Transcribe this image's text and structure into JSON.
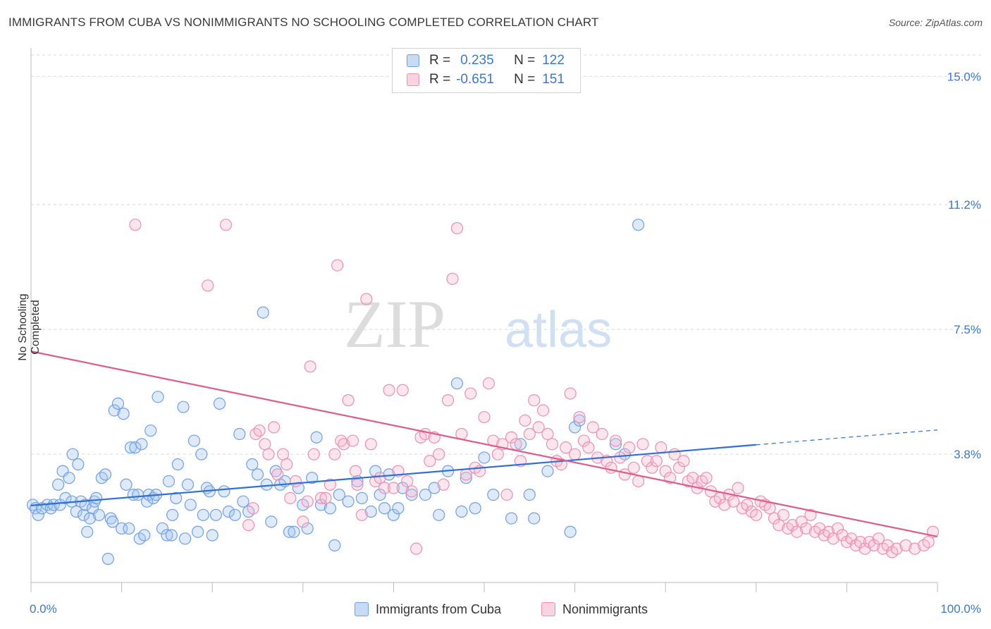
{
  "title": "IMMIGRANTS FROM CUBA VS NONIMMIGRANTS NO SCHOOLING COMPLETED CORRELATION CHART",
  "source": "Source: ZipAtlas.com",
  "watermark": {
    "zip": "ZIP",
    "atlas": "atlas"
  },
  "legend_top": {
    "rows": [
      {
        "r_label": "R =",
        "r_value": "0.235",
        "n_label": "N =",
        "n_value": "122"
      },
      {
        "r_label": "R =",
        "r_value": "-0.651",
        "n_label": "N =",
        "n_value": "151"
      }
    ]
  },
  "colors": {
    "blue": "#6fa0e6",
    "blue_fill": "rgba(160,196,240,0.35)",
    "blue_line": "#2f6fd6",
    "pink": "#ee8fb0",
    "pink_fill": "rgba(246,182,204,0.35)",
    "pink_line": "#e05a8c",
    "grid": "#d9d9d9",
    "tick_label": "#3a78d8"
  },
  "chart_data": {
    "type": "scatter",
    "title": "IMMIGRANTS FROM CUBA VS NONIMMIGRANTS NO SCHOOLING COMPLETED CORRELATION CHART",
    "xlabel": "",
    "ylabel": "No Schooling Completed",
    "xlim": [
      0,
      100
    ],
    "ylim": [
      0,
      15.8
    ],
    "x_tick_labels": [
      "0.0%",
      "100.0%"
    ],
    "y_ticks": [
      3.8,
      7.5,
      11.2,
      15.0
    ],
    "y_tick_labels": [
      "3.8%",
      "7.5%",
      "11.2%",
      "15.0%"
    ],
    "grid": "horizontal dashed",
    "legend_position": "bottom",
    "series": [
      {
        "name": "Immigrants from Cuba",
        "r": 0.235,
        "n": 122,
        "trend": {
          "x0": 0,
          "y0": 2.28,
          "x1": 80,
          "y1": 4.08,
          "dash_x1": 100,
          "dash_y1": 4.52
        },
        "points": [
          [
            0.2,
            2.3
          ],
          [
            0.5,
            2.2
          ],
          [
            0.8,
            2.0
          ],
          [
            1.2,
            2.2
          ],
          [
            1.8,
            2.3
          ],
          [
            2.2,
            2.2
          ],
          [
            2.5,
            2.3
          ],
          [
            3.0,
            2.9
          ],
          [
            3.2,
            2.3
          ],
          [
            3.5,
            3.3
          ],
          [
            3.8,
            2.5
          ],
          [
            4.2,
            3.1
          ],
          [
            4.5,
            2.4
          ],
          [
            4.6,
            3.8
          ],
          [
            5.0,
            2.1
          ],
          [
            5.2,
            3.5
          ],
          [
            5.5,
            2.4
          ],
          [
            5.8,
            2.0
          ],
          [
            6.0,
            2.3
          ],
          [
            6.2,
            1.5
          ],
          [
            6.5,
            1.9
          ],
          [
            6.8,
            2.2
          ],
          [
            7.0,
            2.4
          ],
          [
            7.2,
            2.5
          ],
          [
            7.5,
            2.0
          ],
          [
            7.8,
            3.1
          ],
          [
            8.2,
            3.2
          ],
          [
            8.5,
            0.7
          ],
          [
            8.8,
            1.9
          ],
          [
            9.0,
            1.8
          ],
          [
            9.2,
            5.1
          ],
          [
            9.6,
            5.3
          ],
          [
            10.0,
            1.6
          ],
          [
            10.2,
            5.0
          ],
          [
            10.5,
            2.9
          ],
          [
            10.8,
            1.6
          ],
          [
            11.0,
            4.0
          ],
          [
            11.3,
            2.6
          ],
          [
            11.5,
            4.0
          ],
          [
            11.8,
            2.6
          ],
          [
            12.0,
            1.3
          ],
          [
            12.2,
            4.1
          ],
          [
            12.5,
            1.4
          ],
          [
            12.8,
            2.4
          ],
          [
            13.0,
            2.6
          ],
          [
            13.2,
            4.5
          ],
          [
            13.5,
            2.5
          ],
          [
            13.8,
            2.6
          ],
          [
            14.0,
            5.5
          ],
          [
            14.5,
            1.6
          ],
          [
            15.0,
            1.4
          ],
          [
            15.2,
            3.0
          ],
          [
            15.5,
            1.4
          ],
          [
            15.6,
            2.0
          ],
          [
            16.0,
            2.5
          ],
          [
            16.2,
            3.5
          ],
          [
            16.8,
            5.2
          ],
          [
            17.0,
            1.3
          ],
          [
            17.3,
            2.9
          ],
          [
            17.6,
            2.3
          ],
          [
            18.0,
            4.2
          ],
          [
            18.4,
            1.5
          ],
          [
            18.8,
            3.8
          ],
          [
            19.0,
            2.0
          ],
          [
            19.4,
            2.8
          ],
          [
            19.7,
            2.7
          ],
          [
            20.0,
            1.4
          ],
          [
            20.4,
            2.0
          ],
          [
            20.8,
            5.3
          ],
          [
            21.3,
            2.7
          ],
          [
            21.8,
            2.1
          ],
          [
            22.5,
            2.0
          ],
          [
            23.0,
            4.4
          ],
          [
            23.4,
            2.4
          ],
          [
            24.0,
            2.1
          ],
          [
            24.4,
            3.5
          ],
          [
            25.0,
            3.2
          ],
          [
            25.6,
            8.0
          ],
          [
            26.0,
            2.9
          ],
          [
            26.5,
            1.8
          ],
          [
            27.0,
            3.3
          ],
          [
            27.5,
            2.9
          ],
          [
            28.0,
            3.0
          ],
          [
            28.5,
            1.5
          ],
          [
            29.0,
            1.5
          ],
          [
            29.5,
            2.8
          ],
          [
            30.0,
            2.3
          ],
          [
            30.5,
            1.6
          ],
          [
            31.0,
            3.1
          ],
          [
            31.5,
            4.3
          ],
          [
            32.0,
            2.3
          ],
          [
            33.0,
            2.2
          ],
          [
            33.5,
            1.1
          ],
          [
            34.0,
            2.6
          ],
          [
            35.0,
            2.4
          ],
          [
            36.0,
            3.0
          ],
          [
            36.5,
            2.5
          ],
          [
            37.5,
            2.1
          ],
          [
            38.0,
            3.3
          ],
          [
            38.5,
            2.6
          ],
          [
            39.0,
            2.2
          ],
          [
            39.5,
            3.2
          ],
          [
            40.0,
            2.0
          ],
          [
            40.5,
            2.2
          ],
          [
            41.0,
            2.8
          ],
          [
            42.0,
            2.6
          ],
          [
            43.5,
            2.6
          ],
          [
            44.5,
            2.8
          ],
          [
            45.0,
            2.0
          ],
          [
            46.0,
            3.3
          ],
          [
            47.0,
            5.9
          ],
          [
            47.5,
            2.1
          ],
          [
            48.0,
            3.1
          ],
          [
            49.0,
            2.2
          ],
          [
            50.0,
            3.7
          ],
          [
            51.0,
            2.6
          ],
          [
            53.0,
            1.9
          ],
          [
            54.0,
            4.1
          ],
          [
            55.0,
            2.6
          ],
          [
            55.5,
            1.9
          ],
          [
            57.0,
            3.3
          ],
          [
            59.5,
            1.5
          ],
          [
            60.0,
            4.6
          ],
          [
            60.5,
            4.8
          ],
          [
            64.5,
            4.1
          ],
          [
            65.5,
            3.8
          ],
          [
            67.0,
            10.6
          ]
        ]
      },
      {
        "name": "Nonimmigrants",
        "r": -0.651,
        "n": 151,
        "trend": {
          "x0": 0,
          "y0": 6.85,
          "x1": 100,
          "y1": 1.36
        },
        "points": [
          [
            11.5,
            10.6
          ],
          [
            19.5,
            8.8
          ],
          [
            21.5,
            10.6
          ],
          [
            24.0,
            1.7
          ],
          [
            24.5,
            2.2
          ],
          [
            24.8,
            4.4
          ],
          [
            25.2,
            4.5
          ],
          [
            25.8,
            4.1
          ],
          [
            26.2,
            3.8
          ],
          [
            26.8,
            4.6
          ],
          [
            27.2,
            3.2
          ],
          [
            27.8,
            3.8
          ],
          [
            28.2,
            3.5
          ],
          [
            28.6,
            2.5
          ],
          [
            29.2,
            3.0
          ],
          [
            30.0,
            1.8
          ],
          [
            30.5,
            2.4
          ],
          [
            30.8,
            6.4
          ],
          [
            31.2,
            3.8
          ],
          [
            32.0,
            2.5
          ],
          [
            32.5,
            2.5
          ],
          [
            33.0,
            2.9
          ],
          [
            33.5,
            3.8
          ],
          [
            33.8,
            9.4
          ],
          [
            34.2,
            4.2
          ],
          [
            34.5,
            4.1
          ],
          [
            35.0,
            5.4
          ],
          [
            35.5,
            4.2
          ],
          [
            35.8,
            3.3
          ],
          [
            36.0,
            2.9
          ],
          [
            36.5,
            2.0
          ],
          [
            37.0,
            8.4
          ],
          [
            37.5,
            4.1
          ],
          [
            38.0,
            3.0
          ],
          [
            38.5,
            3.1
          ],
          [
            39.0,
            2.8
          ],
          [
            39.5,
            5.7
          ],
          [
            40.0,
            2.8
          ],
          [
            40.5,
            3.3
          ],
          [
            41.0,
            5.7
          ],
          [
            41.5,
            3.0
          ],
          [
            42.0,
            2.7
          ],
          [
            42.5,
            1.0
          ],
          [
            43.0,
            4.3
          ],
          [
            43.5,
            4.4
          ],
          [
            44.0,
            3.6
          ],
          [
            44.5,
            4.3
          ],
          [
            45.0,
            3.8
          ],
          [
            45.5,
            2.9
          ],
          [
            46.0,
            5.4
          ],
          [
            46.5,
            9.0
          ],
          [
            47.0,
            10.5
          ],
          [
            47.5,
            4.4
          ],
          [
            48.0,
            3.2
          ],
          [
            48.5,
            5.6
          ],
          [
            49.0,
            3.4
          ],
          [
            49.5,
            3.3
          ],
          [
            50.0,
            4.9
          ],
          [
            50.5,
            5.9
          ],
          [
            51.0,
            4.2
          ],
          [
            51.5,
            3.8
          ],
          [
            52.0,
            4.1
          ],
          [
            52.5,
            2.6
          ],
          [
            53.0,
            4.3
          ],
          [
            53.5,
            4.1
          ],
          [
            54.0,
            3.6
          ],
          [
            54.5,
            4.8
          ],
          [
            55.0,
            4.4
          ],
          [
            55.5,
            5.4
          ],
          [
            56.0,
            4.6
          ],
          [
            56.5,
            5.1
          ],
          [
            57.0,
            4.4
          ],
          [
            57.5,
            4.1
          ],
          [
            58.0,
            3.6
          ],
          [
            58.5,
            3.5
          ],
          [
            59.0,
            4.0
          ],
          [
            59.5,
            5.6
          ],
          [
            60.0,
            3.8
          ],
          [
            60.5,
            4.9
          ],
          [
            61.0,
            4.2
          ],
          [
            61.5,
            4.0
          ],
          [
            62.0,
            4.6
          ],
          [
            62.5,
            3.7
          ],
          [
            63.0,
            4.4
          ],
          [
            63.5,
            3.6
          ],
          [
            64.0,
            3.4
          ],
          [
            64.5,
            4.2
          ],
          [
            65.0,
            3.7
          ],
          [
            65.5,
            3.2
          ],
          [
            66.0,
            4.0
          ],
          [
            66.5,
            3.4
          ],
          [
            67.0,
            3.0
          ],
          [
            67.5,
            4.1
          ],
          [
            68.0,
            3.6
          ],
          [
            68.5,
            3.4
          ],
          [
            69.0,
            3.6
          ],
          [
            69.5,
            4.0
          ],
          [
            70.0,
            3.3
          ],
          [
            70.5,
            3.1
          ],
          [
            71.0,
            3.8
          ],
          [
            71.5,
            3.4
          ],
          [
            72.0,
            3.6
          ],
          [
            72.5,
            3.0
          ],
          [
            73.0,
            3.1
          ],
          [
            73.5,
            2.8
          ],
          [
            74.0,
            3.0
          ],
          [
            74.5,
            3.1
          ],
          [
            75.0,
            2.7
          ],
          [
            75.5,
            2.4
          ],
          [
            76.0,
            2.5
          ],
          [
            76.5,
            2.3
          ],
          [
            77.0,
            2.6
          ],
          [
            77.5,
            2.4
          ],
          [
            78.0,
            2.8
          ],
          [
            78.5,
            2.2
          ],
          [
            79.0,
            2.3
          ],
          [
            79.5,
            2.1
          ],
          [
            80.0,
            2.0
          ],
          [
            80.5,
            2.4
          ],
          [
            81.0,
            2.3
          ],
          [
            81.5,
            2.2
          ],
          [
            82.0,
            1.9
          ],
          [
            82.5,
            1.7
          ],
          [
            83.0,
            2.0
          ],
          [
            83.5,
            1.6
          ],
          [
            84.0,
            1.7
          ],
          [
            84.5,
            1.5
          ],
          [
            85.0,
            1.8
          ],
          [
            85.5,
            1.6
          ],
          [
            86.0,
            2.0
          ],
          [
            86.5,
            1.5
          ],
          [
            87.0,
            1.6
          ],
          [
            87.5,
            1.4
          ],
          [
            88.0,
            1.5
          ],
          [
            88.5,
            1.3
          ],
          [
            89.0,
            1.6
          ],
          [
            89.5,
            1.4
          ],
          [
            90.0,
            1.2
          ],
          [
            90.5,
            1.3
          ],
          [
            91.0,
            1.1
          ],
          [
            91.5,
            1.2
          ],
          [
            92.0,
            1.0
          ],
          [
            92.5,
            1.2
          ],
          [
            93.0,
            1.1
          ],
          [
            93.5,
            1.3
          ],
          [
            94.0,
            1.0
          ],
          [
            94.5,
            1.1
          ],
          [
            95.0,
            0.9
          ],
          [
            95.5,
            1.0
          ],
          [
            96.5,
            1.1
          ],
          [
            97.5,
            1.0
          ],
          [
            98.5,
            1.1
          ],
          [
            99.0,
            1.2
          ],
          [
            99.5,
            1.5
          ]
        ]
      }
    ]
  },
  "bottom_legend": [
    "Immigrants from Cuba",
    "Nonimmigrants"
  ]
}
